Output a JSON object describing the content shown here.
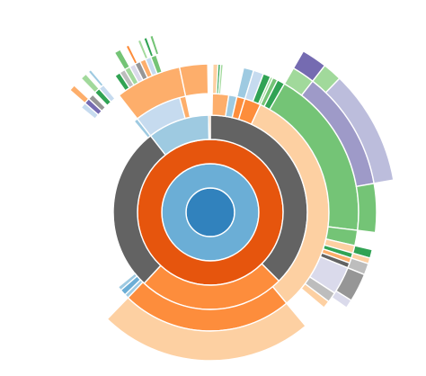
{
  "chart_data": {
    "type": "sunburst",
    "title": "",
    "levels": 6,
    "colors": {
      "blue_dark": "#3182bd",
      "blue_mid": "#6baed6",
      "blue_light": "#9ecae1",
      "blue_pale": "#c6dbef",
      "orange_dark": "#e6550d",
      "orange_mid": "#fd8d3c",
      "orange_light": "#fdae6b",
      "orange_pale": "#fdd0a2",
      "green_dark": "#31a354",
      "green_mid": "#74c476",
      "green_light": "#a1d99b",
      "green_pale": "#c7e9c0",
      "purple_dark": "#756bb1",
      "purple_mid": "#9e9ac8",
      "purple_light": "#bcbddc",
      "purple_pale": "#dadaeb",
      "grey_dark": "#636363",
      "grey_mid": "#969696",
      "grey_light": "#bdbdbd",
      "grey_pale": "#d9d9d9"
    },
    "arcs": [
      {
        "depth": 0,
        "start": 0,
        "end": 360,
        "color": "blue_dark"
      },
      {
        "depth": 1,
        "start": 0,
        "end": 360,
        "color": "blue_mid"
      },
      {
        "depth": 2,
        "start": 0,
        "end": 360,
        "color": "orange_dark"
      },
      {
        "depth": 3,
        "start": 0,
        "end": 135,
        "color": "grey_dark"
      },
      {
        "depth": 3,
        "start": 135,
        "end": 223,
        "color": "orange_mid"
      },
      {
        "depth": 3,
        "start": 223,
        "end": 322,
        "color": "grey_dark"
      },
      {
        "depth": 3,
        "start": 322,
        "end": 359,
        "color": "blue_light"
      },
      {
        "depth": 3,
        "start": 359,
        "end": 360,
        "color": "orange_light"
      },
      {
        "depth": 4,
        "start": 1,
        "end": 9,
        "color": "orange_light"
      },
      {
        "depth": 4,
        "start": 9,
        "end": 13,
        "color": "blue_light"
      },
      {
        "depth": 4,
        "start": 13,
        "end": 17,
        "color": "orange_mid"
      },
      {
        "depth": 4,
        "start": 17,
        "end": 25,
        "color": "orange_mid"
      },
      {
        "depth": 4,
        "start": 25,
        "end": 140,
        "color": "orange_pale"
      },
      {
        "depth": 4,
        "start": 140,
        "end": 224,
        "color": "orange_mid"
      },
      {
        "depth": 4,
        "start": 224,
        "end": 226,
        "color": "blue_light"
      },
      {
        "depth": 4,
        "start": 226,
        "end": 229,
        "color": "blue_mid"
      },
      {
        "depth": 4,
        "start": 229,
        "end": 231,
        "color": "blue_light"
      },
      {
        "depth": 4,
        "start": 320,
        "end": 322,
        "color": "blue_light"
      },
      {
        "depth": 4,
        "start": 322,
        "end": 345,
        "color": "blue_pale"
      },
      {
        "depth": 4,
        "start": 345,
        "end": 348,
        "color": "orange_light"
      },
      {
        "depth": 5,
        "start": 1,
        "end": 3,
        "color": "orange_pale"
      },
      {
        "depth": 5,
        "start": 3,
        "end": 4,
        "color": "green_dark"
      },
      {
        "depth": 5,
        "start": 4,
        "end": 5,
        "color": "green_light"
      },
      {
        "depth": 5,
        "start": 13,
        "end": 17,
        "color": "blue_light"
      },
      {
        "depth": 5,
        "start": 17,
        "end": 21,
        "color": "blue_pale"
      },
      {
        "depth": 5,
        "start": 21,
        "end": 24,
        "color": "green_dark"
      },
      {
        "depth": 5,
        "start": 24,
        "end": 25,
        "color": "green_light"
      },
      {
        "depth": 5,
        "start": 25,
        "end": 27,
        "color": "green_mid"
      },
      {
        "depth": 5,
        "start": 27,
        "end": 30,
        "color": "green_dark"
      },
      {
        "depth": 5,
        "start": 30,
        "end": 97,
        "color": "green_mid"
      },
      {
        "depth": 5,
        "start": 97,
        "end": 103,
        "color": "green_mid"
      },
      {
        "depth": 5,
        "start": 103,
        "end": 106,
        "color": "orange_pale"
      },
      {
        "depth": 5,
        "start": 106,
        "end": 108,
        "color": "green_dark"
      },
      {
        "depth": 5,
        "start": 108,
        "end": 110,
        "color": "orange_light"
      },
      {
        "depth": 5,
        "start": 110,
        "end": 112,
        "color": "grey_dark"
      },
      {
        "depth": 5,
        "start": 112,
        "end": 123,
        "color": "purple_pale"
      },
      {
        "depth": 5,
        "start": 123,
        "end": 127,
        "color": "grey_light"
      },
      {
        "depth": 5,
        "start": 127,
        "end": 130,
        "color": "orange_pale"
      },
      {
        "depth": 5,
        "start": 140,
        "end": 224,
        "color": "orange_pale"
      },
      {
        "depth": 5,
        "start": 322,
        "end": 348,
        "color": "orange_light"
      },
      {
        "depth": 5,
        "start": 348,
        "end": 359,
        "color": "orange_light"
      },
      {
        "depth": 6,
        "start": 30,
        "end": 38,
        "color": "green_light"
      },
      {
        "depth": 6,
        "start": 38,
        "end": 80,
        "color": "purple_mid"
      },
      {
        "depth": 6,
        "start": 80,
        "end": 97,
        "color": "green_mid"
      },
      {
        "depth": 6,
        "start": 103,
        "end": 106,
        "color": "green_dark"
      },
      {
        "depth": 6,
        "start": 106,
        "end": 108,
        "color": "orange_pale"
      },
      {
        "depth": 6,
        "start": 108,
        "end": 112,
        "color": "grey_light"
      },
      {
        "depth": 6,
        "start": 112,
        "end": 122,
        "color": "grey_mid"
      },
      {
        "depth": 6,
        "start": 122,
        "end": 125,
        "color": "purple_pale"
      },
      {
        "depth": 7,
        "start": 30,
        "end": 38,
        "color": "purple_dark"
      },
      {
        "depth": 7,
        "start": 38,
        "end": 44,
        "color": "green_light"
      },
      {
        "depth": 7,
        "start": 44,
        "end": 80,
        "color": "purple_light"
      },
      {
        "depth": 6,
        "start": 318,
        "end": 320,
        "color": "blue_pale"
      },
      {
        "depth": 6,
        "start": 316,
        "end": 318,
        "color": "green_dark"
      },
      {
        "depth": 6,
        "start": 313,
        "end": 315,
        "color": "grey_mid"
      },
      {
        "depth": 6,
        "start": 311,
        "end": 313,
        "color": "purple_dark"
      },
      {
        "depth": 6,
        "start": 309,
        "end": 311,
        "color": "blue_pale"
      },
      {
        "depth": 6,
        "start": 325,
        "end": 327,
        "color": "green_dark"
      },
      {
        "depth": 6,
        "start": 327,
        "end": 329,
        "color": "grey_light"
      },
      {
        "depth": 6,
        "start": 329,
        "end": 331,
        "color": "green_light"
      },
      {
        "depth": 6,
        "start": 331,
        "end": 333,
        "color": "purple_pale"
      },
      {
        "depth": 6,
        "start": 333,
        "end": 335,
        "color": "grey_mid"
      },
      {
        "depth": 6,
        "start": 335,
        "end": 337,
        "color": "orange_light"
      },
      {
        "depth": 6,
        "start": 337,
        "end": 339,
        "color": "blue_pale"
      },
      {
        "depth": 6,
        "start": 339,
        "end": 341,
        "color": "green_mid"
      },
      {
        "depth": 7,
        "start": 316,
        "end": 318,
        "color": "green_light"
      },
      {
        "depth": 7,
        "start": 319,
        "end": 320,
        "color": "blue_light"
      },
      {
        "depth": 7,
        "start": 311,
        "end": 313,
        "color": "orange_light"
      },
      {
        "depth": 7,
        "start": 329,
        "end": 331,
        "color": "green_mid"
      },
      {
        "depth": 7,
        "start": 333,
        "end": 334,
        "color": "orange_mid"
      },
      {
        "depth": 7,
        "start": 337,
        "end": 338,
        "color": "green_light"
      },
      {
        "depth": 7,
        "start": 339,
        "end": 340,
        "color": "green_dark"
      },
      {
        "depth": 7,
        "start": 341,
        "end": 342,
        "color": "green_mid"
      }
    ]
  }
}
